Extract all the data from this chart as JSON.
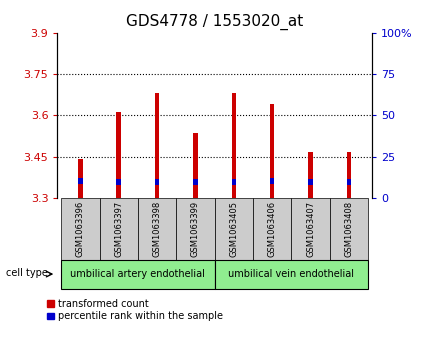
{
  "title": "GDS4778 / 1553020_at",
  "samples": [
    "GSM1063396",
    "GSM1063397",
    "GSM1063398",
    "GSM1063399",
    "GSM1063405",
    "GSM1063406",
    "GSM1063407",
    "GSM1063408"
  ],
  "red_values": [
    3.44,
    3.61,
    3.68,
    3.535,
    3.68,
    3.64,
    3.465,
    3.465
  ],
  "blue_bottoms": [
    3.35,
    3.345,
    3.345,
    3.345,
    3.345,
    3.35,
    3.345,
    3.345
  ],
  "blue_heights": [
    0.022,
    0.022,
    0.022,
    0.022,
    0.022,
    0.022,
    0.022,
    0.022
  ],
  "baseline": 3.3,
  "ylim_left": [
    3.3,
    3.9
  ],
  "ylim_right": [
    0,
    100
  ],
  "yticks_left": [
    3.3,
    3.45,
    3.6,
    3.75,
    3.9
  ],
  "yticks_right": [
    0,
    25,
    50,
    75,
    100
  ],
  "yticklabels_right": [
    "0",
    "25",
    "50",
    "75",
    "100%"
  ],
  "yticklabels_left": [
    "3.3",
    "3.45",
    "3.6",
    "3.75",
    "3.9"
  ],
  "red_color": "#cc0000",
  "blue_color": "#0000cc",
  "bar_width": 0.12,
  "grid_color": "#000000",
  "cell_types": [
    "umbilical artery endothelial",
    "umbilical vein endothelial"
  ],
  "cell_type_ranges": [
    [
      0,
      4
    ],
    [
      4,
      8
    ]
  ],
  "cell_type_color": "#90ee90",
  "tick_color_left": "#cc0000",
  "tick_color_right": "#0000cc",
  "legend_red": "transformed count",
  "legend_blue": "percentile rank within the sample",
  "bg_plot": "#ffffff",
  "bg_xtick": "#cccccc",
  "title_fontsize": 11,
  "axis_fontsize": 8,
  "label_fontsize": 7
}
